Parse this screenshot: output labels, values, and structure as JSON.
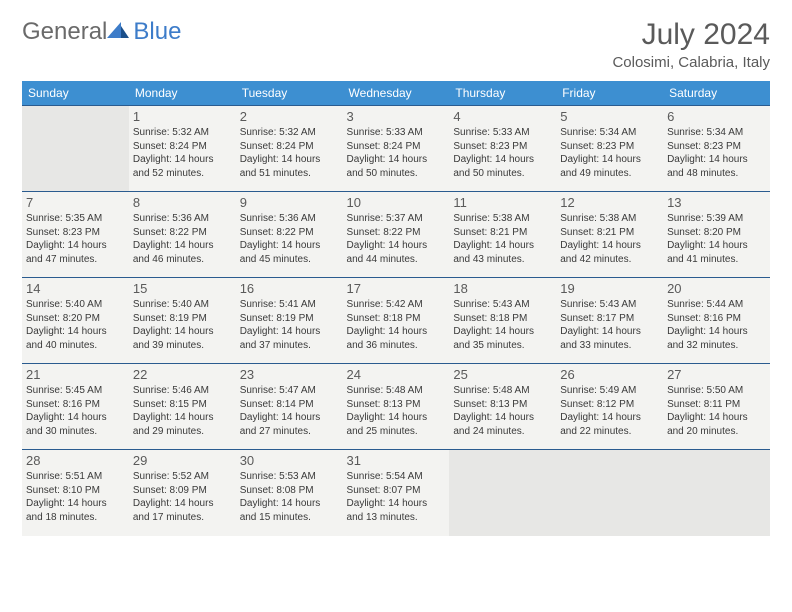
{
  "logo": {
    "text_general": "General",
    "text_blue": "Blue"
  },
  "title": "July 2024",
  "location": "Colosimi, Calabria, Italy",
  "colors": {
    "header_bg": "#3d8fd1",
    "header_text": "#ffffff",
    "cell_border": "#2a5b8f",
    "cell_bg": "#f3f3f1",
    "empty_bg": "#e7e7e5",
    "logo_blue": "#3d7cc9",
    "logo_gray": "#6a6a6a"
  },
  "weekdays": [
    "Sunday",
    "Monday",
    "Tuesday",
    "Wednesday",
    "Thursday",
    "Friday",
    "Saturday"
  ],
  "weeks": [
    [
      {
        "empty": true
      },
      {
        "day": "1",
        "sunrise": "5:32 AM",
        "sunset": "8:24 PM",
        "daylight": "14 hours and 52 minutes."
      },
      {
        "day": "2",
        "sunrise": "5:32 AM",
        "sunset": "8:24 PM",
        "daylight": "14 hours and 51 minutes."
      },
      {
        "day": "3",
        "sunrise": "5:33 AM",
        "sunset": "8:24 PM",
        "daylight": "14 hours and 50 minutes."
      },
      {
        "day": "4",
        "sunrise": "5:33 AM",
        "sunset": "8:23 PM",
        "daylight": "14 hours and 50 minutes."
      },
      {
        "day": "5",
        "sunrise": "5:34 AM",
        "sunset": "8:23 PM",
        "daylight": "14 hours and 49 minutes."
      },
      {
        "day": "6",
        "sunrise": "5:34 AM",
        "sunset": "8:23 PM",
        "daylight": "14 hours and 48 minutes."
      }
    ],
    [
      {
        "day": "7",
        "sunrise": "5:35 AM",
        "sunset": "8:23 PM",
        "daylight": "14 hours and 47 minutes."
      },
      {
        "day": "8",
        "sunrise": "5:36 AM",
        "sunset": "8:22 PM",
        "daylight": "14 hours and 46 minutes."
      },
      {
        "day": "9",
        "sunrise": "5:36 AM",
        "sunset": "8:22 PM",
        "daylight": "14 hours and 45 minutes."
      },
      {
        "day": "10",
        "sunrise": "5:37 AM",
        "sunset": "8:22 PM",
        "daylight": "14 hours and 44 minutes."
      },
      {
        "day": "11",
        "sunrise": "5:38 AM",
        "sunset": "8:21 PM",
        "daylight": "14 hours and 43 minutes."
      },
      {
        "day": "12",
        "sunrise": "5:38 AM",
        "sunset": "8:21 PM",
        "daylight": "14 hours and 42 minutes."
      },
      {
        "day": "13",
        "sunrise": "5:39 AM",
        "sunset": "8:20 PM",
        "daylight": "14 hours and 41 minutes."
      }
    ],
    [
      {
        "day": "14",
        "sunrise": "5:40 AM",
        "sunset": "8:20 PM",
        "daylight": "14 hours and 40 minutes."
      },
      {
        "day": "15",
        "sunrise": "5:40 AM",
        "sunset": "8:19 PM",
        "daylight": "14 hours and 39 minutes."
      },
      {
        "day": "16",
        "sunrise": "5:41 AM",
        "sunset": "8:19 PM",
        "daylight": "14 hours and 37 minutes."
      },
      {
        "day": "17",
        "sunrise": "5:42 AM",
        "sunset": "8:18 PM",
        "daylight": "14 hours and 36 minutes."
      },
      {
        "day": "18",
        "sunrise": "5:43 AM",
        "sunset": "8:18 PM",
        "daylight": "14 hours and 35 minutes."
      },
      {
        "day": "19",
        "sunrise": "5:43 AM",
        "sunset": "8:17 PM",
        "daylight": "14 hours and 33 minutes."
      },
      {
        "day": "20",
        "sunrise": "5:44 AM",
        "sunset": "8:16 PM",
        "daylight": "14 hours and 32 minutes."
      }
    ],
    [
      {
        "day": "21",
        "sunrise": "5:45 AM",
        "sunset": "8:16 PM",
        "daylight": "14 hours and 30 minutes."
      },
      {
        "day": "22",
        "sunrise": "5:46 AM",
        "sunset": "8:15 PM",
        "daylight": "14 hours and 29 minutes."
      },
      {
        "day": "23",
        "sunrise": "5:47 AM",
        "sunset": "8:14 PM",
        "daylight": "14 hours and 27 minutes."
      },
      {
        "day": "24",
        "sunrise": "5:48 AM",
        "sunset": "8:13 PM",
        "daylight": "14 hours and 25 minutes."
      },
      {
        "day": "25",
        "sunrise": "5:48 AM",
        "sunset": "8:13 PM",
        "daylight": "14 hours and 24 minutes."
      },
      {
        "day": "26",
        "sunrise": "5:49 AM",
        "sunset": "8:12 PM",
        "daylight": "14 hours and 22 minutes."
      },
      {
        "day": "27",
        "sunrise": "5:50 AM",
        "sunset": "8:11 PM",
        "daylight": "14 hours and 20 minutes."
      }
    ],
    [
      {
        "day": "28",
        "sunrise": "5:51 AM",
        "sunset": "8:10 PM",
        "daylight": "14 hours and 18 minutes."
      },
      {
        "day": "29",
        "sunrise": "5:52 AM",
        "sunset": "8:09 PM",
        "daylight": "14 hours and 17 minutes."
      },
      {
        "day": "30",
        "sunrise": "5:53 AM",
        "sunset": "8:08 PM",
        "daylight": "14 hours and 15 minutes."
      },
      {
        "day": "31",
        "sunrise": "5:54 AM",
        "sunset": "8:07 PM",
        "daylight": "14 hours and 13 minutes."
      },
      {
        "empty": true
      },
      {
        "empty": true
      },
      {
        "empty": true
      }
    ]
  ],
  "labels": {
    "sunrise": "Sunrise:",
    "sunset": "Sunset:",
    "daylight": "Daylight:"
  }
}
